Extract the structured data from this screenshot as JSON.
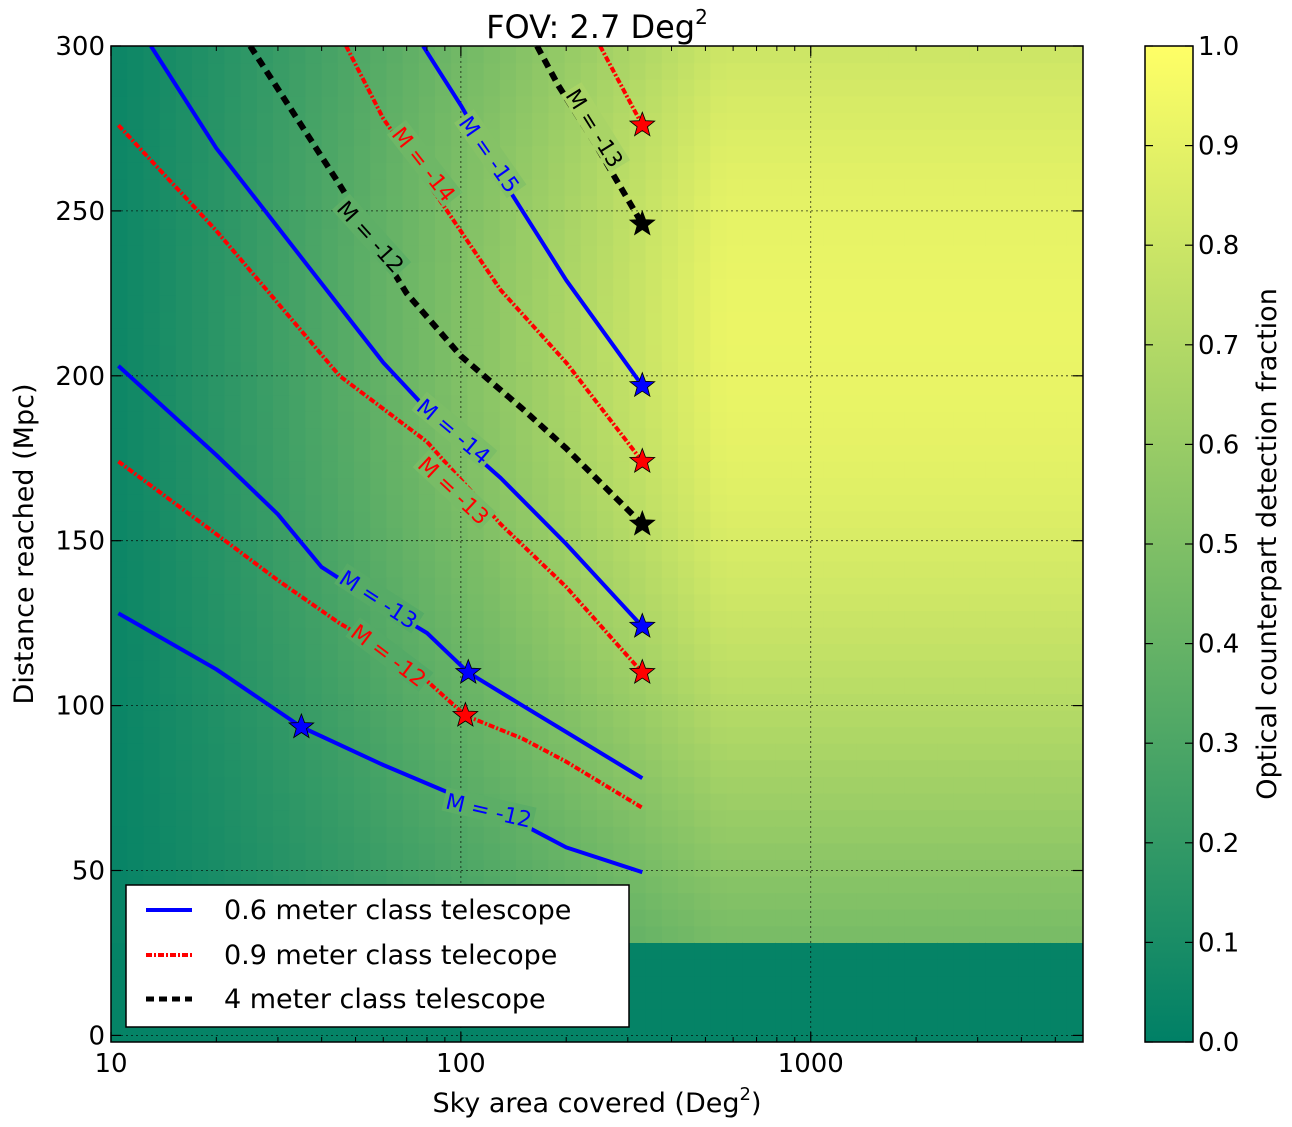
{
  "chart_data": {
    "type": "contour-heatmap",
    "title": "FOV: 2.7 Deg",
    "title_superscript": "2",
    "xlabel": "Sky area covered (Deg",
    "xlabel_superscript": "2",
    "xlabel_suffix": ")",
    "ylabel": "Distance reached (Mpc)",
    "xscale": "log",
    "xlim": [
      10,
      6000
    ],
    "ylim": [
      -2,
      300
    ],
    "x_ticks": [
      {
        "value": 10,
        "label": "10"
      },
      {
        "value": 100,
        "label": "100"
      },
      {
        "value": 1000,
        "label": "1000"
      }
    ],
    "y_ticks": [
      {
        "value": 0,
        "label": "0"
      },
      {
        "value": 50,
        "label": "50"
      },
      {
        "value": 100,
        "label": "100"
      },
      {
        "value": 150,
        "label": "150"
      },
      {
        "value": 200,
        "label": "200"
      },
      {
        "value": 250,
        "label": "250"
      },
      {
        "value": 300,
        "label": "300"
      }
    ],
    "grid": true,
    "colorbar": {
      "label": "Optical counterpart detection fraction",
      "range": [
        0,
        1
      ],
      "ticks": [
        {
          "value": 0.0,
          "label": "0.0"
        },
        {
          "value": 0.1,
          "label": "0.1"
        },
        {
          "value": 0.2,
          "label": "0.2"
        },
        {
          "value": 0.3,
          "label": "0.3"
        },
        {
          "value": 0.4,
          "label": "0.4"
        },
        {
          "value": 0.5,
          "label": "0.5"
        },
        {
          "value": 0.6,
          "label": "0.6"
        },
        {
          "value": 0.7,
          "label": "0.7"
        },
        {
          "value": 0.8,
          "label": "0.8"
        },
        {
          "value": 0.9,
          "label": "0.9"
        },
        {
          "value": 1.0,
          "label": "1.0"
        }
      ],
      "colormap": [
        "#008066",
        "#ffff66"
      ]
    },
    "legend": {
      "placement": "lower-left",
      "entries": [
        {
          "label": "0.6 meter class telescope",
          "series": "0.6m"
        },
        {
          "label": "0.9 meter class telecope",
          "series": "0.9m"
        },
        {
          "label": "4 meter class telescope",
          "series": "4m"
        }
      ]
    },
    "series": [
      {
        "name": "0.6m",
        "color": "#0000ff",
        "style": "solid",
        "magnitude_labels": [
          {
            "label": "M = -12",
            "points": [
              [
                10.5,
                128
              ],
              [
                20,
                111
              ],
              [
                35,
                93.5
              ],
              [
                60,
                82
              ],
              [
                100,
                72
              ],
              [
                150,
                64
              ],
              [
                200,
                57
              ],
              [
                330,
                49.5
              ]
            ],
            "label_at": [
              120,
              68
            ],
            "label_angle": 13,
            "star": [
              35,
              93.5
            ]
          },
          {
            "label": "M = -13",
            "points": [
              [
                10.5,
                203
              ],
              [
                20,
                176
              ],
              [
                30,
                158
              ],
              [
                40,
                142
              ],
              [
                60,
                130
              ],
              [
                80,
                122
              ],
              [
                105,
                110
              ],
              [
                150,
                100
              ],
              [
                200,
                92
              ],
              [
                330,
                78
              ]
            ],
            "label_at": [
              58,
              132
            ],
            "label_angle": 33,
            "star": [
              105,
              110
            ]
          },
          {
            "label": "M = -14",
            "points": [
              [
                13,
                300
              ],
              [
                20,
                269
              ],
              [
                30,
                245
              ],
              [
                40,
                228
              ],
              [
                60,
                204
              ],
              [
                90,
                184
              ],
              [
                130,
                169
              ],
              [
                200,
                149
              ],
              [
                330,
                124
              ]
            ],
            "label_at": [
              95,
              183
            ],
            "label_angle": 40,
            "star": [
              330,
              124
            ]
          },
          {
            "label": "M = -15",
            "points": [
              [
                78,
                300
              ],
              [
                100,
                282
              ],
              [
                140,
                255
              ],
              [
                200,
                229
              ],
              [
                330,
                197
              ]
            ],
            "label_at": [
              120,
              267
            ],
            "label_angle": 55,
            "star": [
              330,
              197
            ]
          }
        ]
      },
      {
        "name": "0.9m",
        "color": "#ff0000",
        "style": "dashdot",
        "magnitude_labels": [
          {
            "label": "M = -12",
            "points": [
              [
                10.5,
                174
              ],
              [
                20,
                152
              ],
              [
                30,
                138
              ],
              [
                45,
                125
              ],
              [
                70,
                113
              ],
              [
                103,
                97
              ],
              [
                150,
                90
              ],
              [
                200,
                83
              ],
              [
                330,
                69
              ]
            ],
            "label_at": [
              62,
              115
            ],
            "label_angle": 37,
            "star": [
              103,
              97
            ]
          },
          {
            "label": "M = -13",
            "points": [
              [
                10.5,
                276
              ],
              [
                20,
                244
              ],
              [
                30,
                222
              ],
              [
                45,
                200
              ],
              [
                80,
                180
              ],
              [
                130,
                155
              ],
              [
                200,
                136
              ],
              [
                330,
                110
              ]
            ],
            "label_at": [
              95,
              165
            ],
            "label_angle": 43,
            "star": [
              330,
              110
            ]
          },
          {
            "label": "M = -14",
            "points": [
              [
                47,
                300
              ],
              [
                60,
                278
              ],
              [
                90,
                251
              ],
              [
                130,
                226
              ],
              [
                200,
                204
              ],
              [
                330,
                174
              ]
            ],
            "label_at": [
              78,
              264
            ],
            "label_angle": 52,
            "star": [
              330,
              174
            ]
          },
          {
            "label": "M = -13",
            "points": [
              [
                250,
                300
              ],
              [
                330,
                276
              ]
            ],
            "label_at": null,
            "label_angle": 0,
            "star": [
              330,
              276
            ]
          }
        ]
      },
      {
        "name": "4m",
        "color": "#000000",
        "style": "dashed",
        "magnitude_labels": [
          {
            "label": "M = -12",
            "points": [
              [
                25,
                300
              ],
              [
                30,
                287
              ],
              [
                45,
                258
              ],
              [
                70,
                225
              ],
              [
                100,
                206
              ],
              [
                150,
                190
              ],
              [
                200,
                178
              ],
              [
                330,
                155
              ]
            ],
            "label_at": [
              55,
              242
            ],
            "label_angle": 48,
            "star": [
              330,
              155
            ]
          },
          {
            "label": "M = -13",
            "points": [
              [
                165,
                300
              ],
              [
                190,
                288
              ],
              [
                240,
                271
              ],
              [
                330,
                246
              ]
            ],
            "label_at": [
              240,
              275
            ],
            "label_angle": 58,
            "star": [
              330,
              246
            ]
          }
        ]
      }
    ]
  }
}
